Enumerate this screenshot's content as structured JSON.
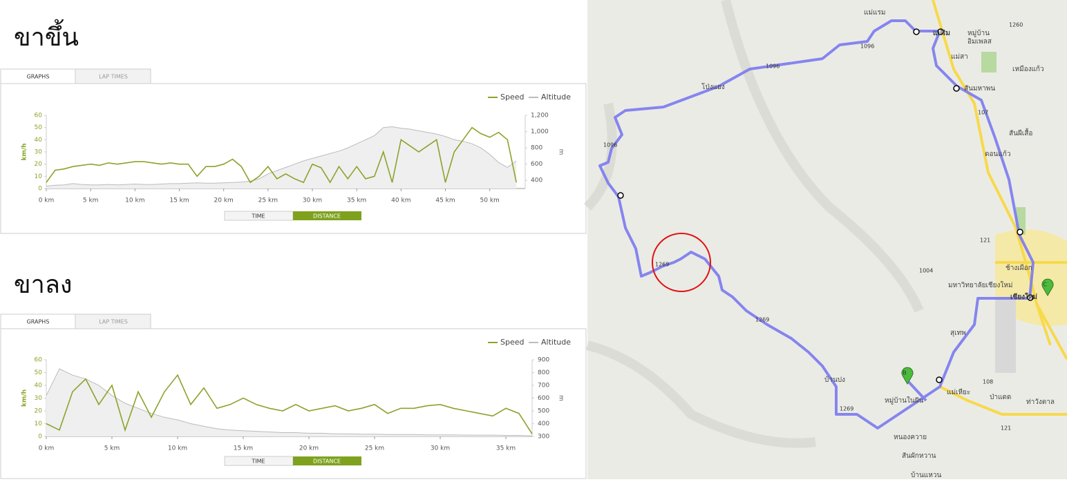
{
  "panels": [
    {
      "heading": "ขาขึ้น",
      "tabs": [
        "GRAPHS",
        "LAP TIMES"
      ],
      "toggle": [
        "TIME",
        "DISTANCE"
      ]
    },
    {
      "heading": "ขาลง",
      "tabs": [
        "GRAPHS",
        "LAP TIMES"
      ],
      "toggle": [
        "TIME",
        "DISTANCE"
      ]
    }
  ],
  "chart_data": [
    {
      "type": "line",
      "ylabel": "km/h",
      "y2label": "m",
      "x": [
        0,
        1,
        2,
        3,
        4,
        5,
        6,
        7,
        8,
        9,
        10,
        11,
        12,
        13,
        14,
        15,
        16,
        17,
        18,
        19,
        20,
        21,
        22,
        23,
        24,
        25,
        26,
        27,
        28,
        29,
        30,
        31,
        32,
        33,
        34,
        35,
        36,
        37,
        38,
        39,
        40,
        41,
        42,
        43,
        44,
        45,
        46,
        47,
        48,
        49,
        50,
        51,
        52,
        53
      ],
      "series": [
        {
          "name": "Speed",
          "color": "#8aa32a",
          "values": [
            5,
            15,
            16,
            18,
            19,
            20,
            19,
            21,
            20,
            21,
            22,
            22,
            21,
            20,
            21,
            20,
            20,
            10,
            18,
            18,
            20,
            24,
            18,
            5,
            10,
            18,
            8,
            12,
            8,
            5,
            20,
            17,
            5,
            18,
            8,
            18,
            8,
            10,
            30,
            5,
            40,
            35,
            30,
            35,
            40,
            5,
            30,
            40,
            50,
            45,
            42,
            46,
            40,
            5
          ]
        },
        {
          "name": "Altitude",
          "color": "#bbbbbb",
          "fill": "#efefef",
          "axis": "y2",
          "values": [
            330,
            340,
            345,
            360,
            350,
            345,
            345,
            350,
            345,
            350,
            355,
            350,
            350,
            355,
            360,
            360,
            365,
            370,
            365,
            365,
            370,
            375,
            380,
            390,
            420,
            480,
            520,
            560,
            600,
            640,
            670,
            700,
            730,
            760,
            800,
            850,
            900,
            950,
            1050,
            1060,
            1040,
            1030,
            1010,
            990,
            970,
            940,
            900,
            880,
            850,
            800,
            720,
            620,
            560,
            640
          ]
        }
      ],
      "xlim": [
        0,
        54
      ],
      "xticks": [
        {
          "value": 0,
          "label": "0 km"
        },
        {
          "value": 5,
          "label": "5 km"
        },
        {
          "value": 10,
          "label": "10 km"
        },
        {
          "value": 15,
          "label": "15 km"
        },
        {
          "value": 20,
          "label": "20 km"
        },
        {
          "value": 25,
          "label": "25 km"
        },
        {
          "value": 30,
          "label": "30 km"
        },
        {
          "value": 35,
          "label": "35 km"
        },
        {
          "value": 40,
          "label": "40 km"
        },
        {
          "value": 45,
          "label": "45 km"
        },
        {
          "value": 50,
          "label": "50 km"
        }
      ],
      "ylim": [
        0,
        60
      ],
      "yticks": [
        0,
        10,
        20,
        30,
        40,
        50,
        60
      ],
      "y2lim": [
        300,
        1200
      ],
      "y2ticks": [
        400,
        600,
        800,
        {
          "value": 1000,
          "label": "1,000"
        },
        {
          "value": 1200,
          "label": "1,200"
        }
      ]
    },
    {
      "type": "line",
      "ylabel": "km/h",
      "y2label": "m",
      "x": [
        0,
        1,
        2,
        3,
        4,
        5,
        6,
        7,
        8,
        9,
        10,
        11,
        12,
        13,
        14,
        15,
        16,
        17,
        18,
        19,
        20,
        21,
        22,
        23,
        24,
        25,
        26,
        27,
        28,
        29,
        30,
        31,
        32,
        33,
        34,
        35,
        36,
        37
      ],
      "series": [
        {
          "name": "Speed",
          "color": "#8aa32a",
          "values": [
            10,
            5,
            35,
            45,
            25,
            40,
            5,
            35,
            15,
            35,
            48,
            25,
            38,
            22,
            25,
            30,
            25,
            22,
            20,
            25,
            20,
            22,
            24,
            20,
            22,
            25,
            18,
            22,
            22,
            24,
            25,
            22,
            20,
            18,
            16,
            22,
            18,
            2
          ]
        },
        {
          "name": "Altitude",
          "color": "#bbbbbb",
          "fill": "#efefef",
          "axis": "y2",
          "values": [
            620,
            830,
            780,
            750,
            700,
            620,
            560,
            520,
            480,
            450,
            430,
            400,
            380,
            360,
            350,
            345,
            340,
            335,
            330,
            330,
            325,
            325,
            320,
            320,
            318,
            318,
            315,
            315,
            315,
            312,
            312,
            312,
            310,
            310,
            310,
            308,
            308,
            305
          ]
        }
      ],
      "xlim": [
        0,
        37
      ],
      "xticks": [
        {
          "value": 0,
          "label": "0 km"
        },
        {
          "value": 5,
          "label": "5 km"
        },
        {
          "value": 10,
          "label": "10 km"
        },
        {
          "value": 15,
          "label": "15 km"
        },
        {
          "value": 20,
          "label": "20 km"
        },
        {
          "value": 25,
          "label": "25 km"
        },
        {
          "value": 30,
          "label": "30 km"
        },
        {
          "value": 35,
          "label": "35 km"
        }
      ],
      "ylim": [
        0,
        60
      ],
      "yticks": [
        0,
        10,
        20,
        30,
        40,
        50,
        60
      ],
      "y2lim": [
        300,
        900
      ],
      "y2ticks": [
        300,
        400,
        500,
        600,
        700,
        800,
        900
      ]
    }
  ],
  "map": {
    "labels": [
      "แม่แรม",
      "แม่ริม",
      "หมู่บ้าน",
      "อิมเพลส",
      "แม่สา",
      "เหมืองแก้ว",
      "โป่งแยง",
      "สันมหาพน",
      "1096",
      "1096",
      "1096",
      "107",
      "1269",
      "1269",
      "1269",
      "121",
      "1004",
      "108",
      "121",
      "ช้างเผือก",
      "มหาวิทยาลัยเชียงใหม่",
      "เชียงใหม่",
      "สุเทพ",
      "บ้านปง",
      "หมู่บ้านในฝัน",
      "หนองควาย",
      "สันผักหวาน",
      "บ้านแหวน",
      "แม่เหียะ",
      "ป่าแดด",
      "ท่าวังตาล",
      "สันผีเสื้อ",
      "ดอนแก้ว",
      "1260",
      "B",
      "C"
    ]
  }
}
